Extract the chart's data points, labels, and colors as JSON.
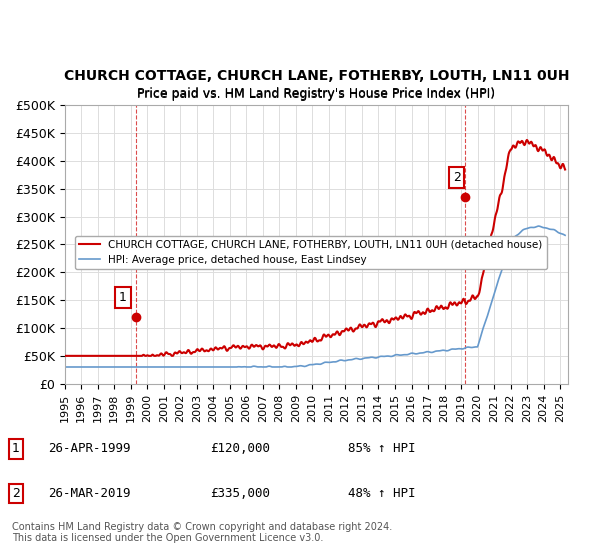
{
  "title": "CHURCH COTTAGE, CHURCH LANE, FOTHERBY, LOUTH, LN11 0UH",
  "subtitle": "Price paid vs. HM Land Registry's House Price Index (HPI)",
  "ylabel_ticks": [
    "£0",
    "£50K",
    "£100K",
    "£150K",
    "£200K",
    "£250K",
    "£300K",
    "£350K",
    "£400K",
    "£450K",
    "£500K"
  ],
  "ytick_values": [
    0,
    50000,
    100000,
    150000,
    200000,
    250000,
    300000,
    350000,
    400000,
    450000,
    500000
  ],
  "ylim": [
    0,
    500000
  ],
  "xlim_start": 1995.0,
  "xlim_end": 2025.5,
  "red_color": "#cc0000",
  "blue_color": "#6699cc",
  "marker_color": "#cc0000",
  "marker2_color": "#cc0000",
  "sale1_x": 1999.32,
  "sale1_y": 120000,
  "sale1_label": "1",
  "sale2_x": 2019.23,
  "sale2_y": 335000,
  "sale2_label": "2",
  "legend_line1": "CHURCH COTTAGE, CHURCH LANE, FOTHERBY, LOUTH, LN11 0UH (detached house)",
  "legend_line2": "HPI: Average price, detached house, East Lindsey",
  "table_row1": [
    "1",
    "26-APR-1999",
    "£120,000",
    "85% ↑ HPI"
  ],
  "table_row2": [
    "2",
    "26-MAR-2019",
    "£335,000",
    "48% ↑ HPI"
  ],
  "footer": "Contains HM Land Registry data © Crown copyright and database right 2024.\nThis data is licensed under the Open Government Licence v3.0.",
  "xticks": [
    1995,
    1996,
    1997,
    1998,
    1999,
    2000,
    2001,
    2002,
    2003,
    2004,
    2005,
    2006,
    2007,
    2008,
    2009,
    2010,
    2011,
    2012,
    2013,
    2014,
    2015,
    2016,
    2017,
    2018,
    2019,
    2020,
    2021,
    2022,
    2023,
    2024,
    2025
  ]
}
